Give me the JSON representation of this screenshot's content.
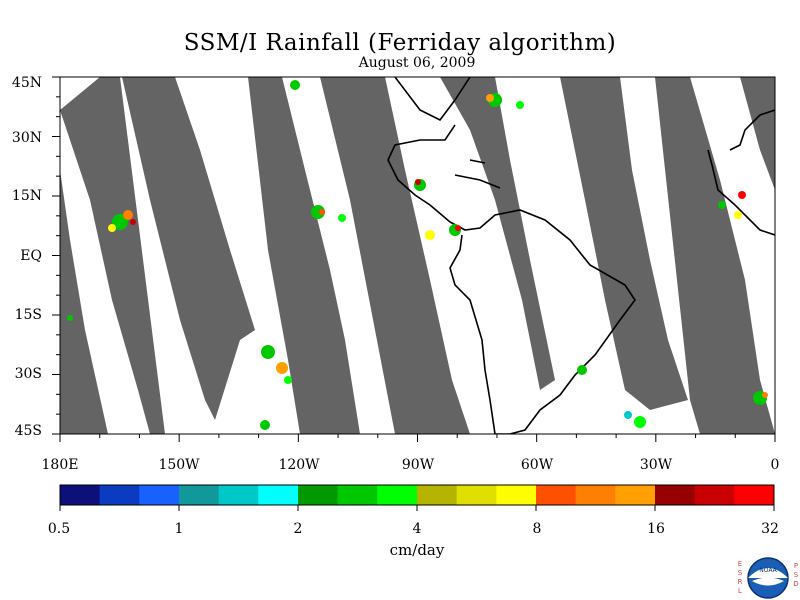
{
  "title": "SSM/I Rainfall (Ferriday algorithm)",
  "subtitle": "August 06, 2009",
  "lat_labels": [
    "45N",
    "30N",
    "15N",
    "EQ",
    "15S",
    "30S",
    "45S"
  ],
  "lon_labels": [
    "180E",
    "150W",
    "120W",
    "90W",
    "60W",
    "30W",
    "0"
  ],
  "colorbar": {
    "units": "cm/day",
    "labels": [
      "0.5",
      "1",
      "2",
      "4",
      "8",
      "16",
      "32"
    ],
    "colors": [
      "#0c1078",
      "#0b3bc0",
      "#1860ff",
      "#10989a",
      "#00c8c8",
      "#00ffff",
      "#009a00",
      "#00c800",
      "#00ff00",
      "#b4b400",
      "#e0e000",
      "#ffff00",
      "#ff5000",
      "#ff8000",
      "#ffa000",
      "#960000",
      "#c80000",
      "#ff0000"
    ]
  },
  "logo": {
    "left_text": [
      "E",
      "S",
      "R",
      "L"
    ],
    "right_text": [
      "P",
      "S",
      "D"
    ],
    "center": "NOAA"
  },
  "colors": {
    "no_data_gray": "#646464",
    "land_outline": "#000000",
    "background": "#ffffff"
  }
}
